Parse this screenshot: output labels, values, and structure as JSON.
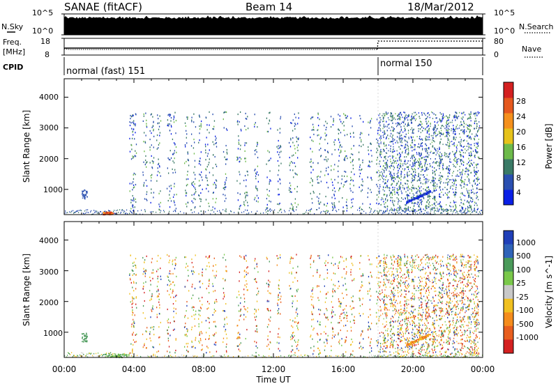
{
  "header": {
    "radar": "SANAE (fitACF)",
    "beam": "Beam 14",
    "date": "18/Mar/2012"
  },
  "nsky": {
    "left_label": "N.Sky",
    "left_ticks": [
      "10^5",
      "10^0"
    ],
    "right_ticks": [
      "10^5",
      "10^0"
    ],
    "right_label": "N.Search"
  },
  "freq": {
    "label_line1": "Freq.",
    "label_line2": "[MHz]",
    "left_ticks": [
      "18",
      "8"
    ],
    "right_ticks": [
      "80",
      "0"
    ],
    "right_label": "Nave"
  },
  "cpid": {
    "label": "CPID",
    "modes": [
      {
        "name": "normal (fast) 151",
        "start_hour": 0
      },
      {
        "name": "normal 150",
        "start_hour": 18
      }
    ]
  },
  "x_axis": {
    "ticks": [
      "00:00",
      "04:00",
      "08:00",
      "12:00",
      "16:00",
      "20:00",
      "00:00"
    ],
    "label": "Time UT"
  },
  "y_axis": {
    "ticks": [
      "1000",
      "2000",
      "3000",
      "4000"
    ],
    "label": "Slant Range [km]"
  },
  "power_scale": {
    "label": "Power [dB]",
    "ticks": [
      "4",
      "8",
      "12",
      "16",
      "20",
      "24",
      "28"
    ],
    "colors": [
      "#0a1fe6",
      "#2a4fb0",
      "#3a7a66",
      "#6dba4a",
      "#e6c21a",
      "#f5901c",
      "#e5581e",
      "#d42020"
    ]
  },
  "velocity_scale": {
    "label": "Velocity [m s^-1]",
    "ticks": [
      "1000",
      "500",
      "100",
      "25",
      "-25",
      "-100",
      "-500",
      "-1000"
    ],
    "colors": [
      "#1f3fb8",
      "#2f63b8",
      "#4a9a5a",
      "#7ac84a",
      "#c8c8c8",
      "#f0c020",
      "#f58c1c",
      "#e85e1e",
      "#d42020"
    ]
  },
  "chart_data": [
    {
      "type": "heatmap",
      "title": "Power",
      "parameter": "Power [dB]",
      "x_range_hours": [
        0,
        24
      ],
      "y_range_km": [
        180,
        4600
      ],
      "features": [
        {
          "desc": "near-range ground scatter",
          "t_start": 0.0,
          "t_end": 24.0,
          "range_km": [
            180,
            300
          ],
          "power_db": 6
        },
        {
          "desc": "strong near-range echo",
          "t_start": 2.2,
          "t_end": 2.8,
          "range_km": [
            180,
            300
          ],
          "power_db": 28
        },
        {
          "desc": "patch",
          "t_start": 1.0,
          "t_end": 1.3,
          "range_km": [
            700,
            1000
          ],
          "power_db": 5
        },
        {
          "desc": "sporadic scatter",
          "t_start": 3.8,
          "t_end": 23.8,
          "range_km": [
            300,
            3550
          ],
          "power_db": 12
        },
        {
          "desc": "sloping echo",
          "t_start": 19.6,
          "t_end": 21.0,
          "range_km": [
            600,
            900
          ],
          "power_db": 4
        }
      ]
    },
    {
      "type": "heatmap",
      "title": "Velocity",
      "parameter": "Velocity [m s^-1]",
      "x_range_hours": [
        0,
        24
      ],
      "y_range_km": [
        180,
        4600
      ],
      "features": [
        {
          "desc": "near-range ground scatter",
          "t_start": 0.0,
          "t_end": 4.0,
          "range_km": [
            180,
            400
          ],
          "velocity": 0
        },
        {
          "desc": "sporadic scatter",
          "t_start": 3.8,
          "t_end": 23.8,
          "range_km": [
            300,
            3550
          ],
          "velocity": 0
        },
        {
          "desc": "yellow echo",
          "t_start": 19.5,
          "t_end": 20.5,
          "range_km": [
            550,
            800
          ],
          "velocity": -60
        },
        {
          "desc": "orange echo",
          "t_start": 20.5,
          "t_end": 21.2,
          "range_km": [
            500,
            900
          ],
          "velocity": -300
        }
      ]
    }
  ]
}
